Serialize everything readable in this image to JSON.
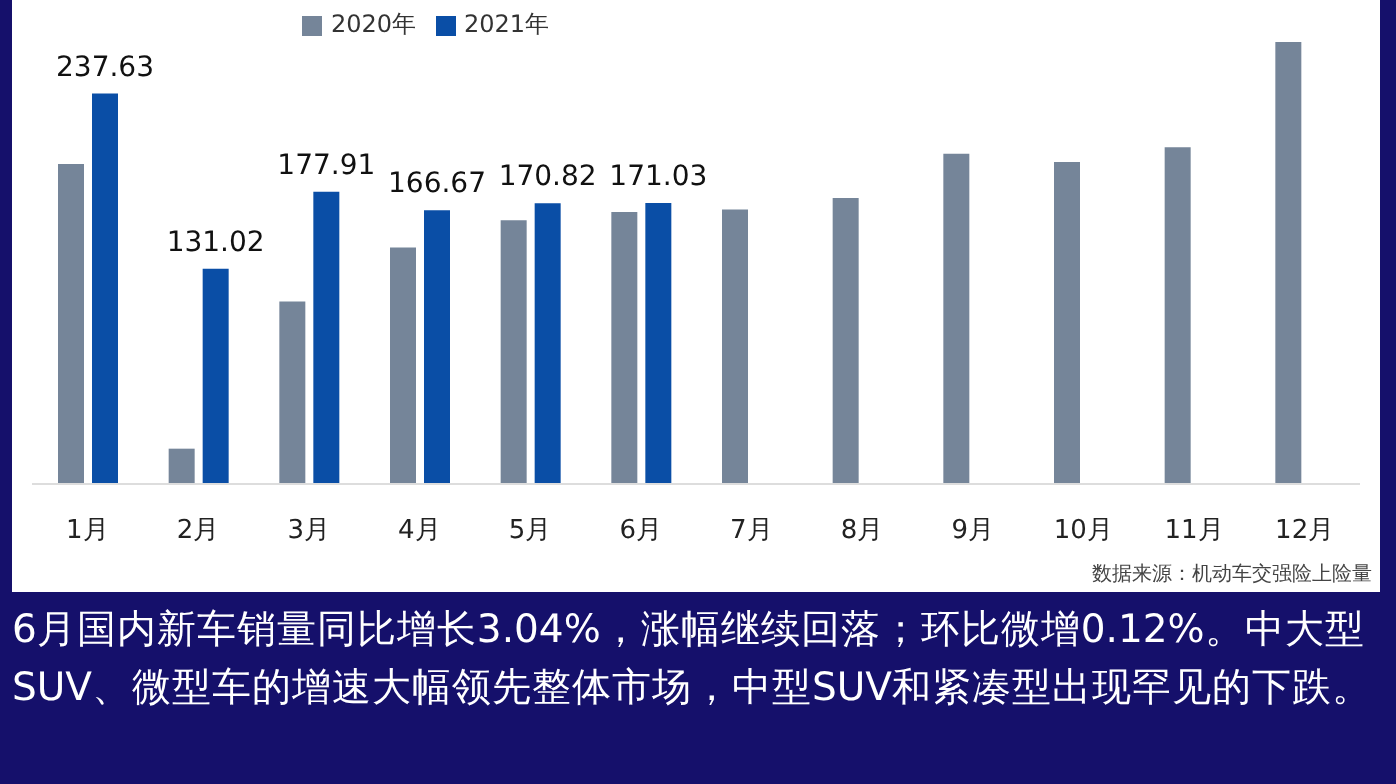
{
  "chart_data": {
    "type": "bar",
    "categories": [
      "1月",
      "2月",
      "3月",
      "4月",
      "5月",
      "6月",
      "7月",
      "8月",
      "9月",
      "10月",
      "11月",
      "12月"
    ],
    "series": [
      {
        "name": "2020年",
        "color": "#758599",
        "values": [
          194.7,
          21.5,
          111,
          144,
          160.5,
          165.6,
          167,
          174,
          201,
          196,
          205,
          269
        ]
      },
      {
        "name": "2021年",
        "color": "#0a4ea6",
        "values": [
          237.63,
          131.02,
          177.91,
          166.67,
          170.82,
          171.03,
          null,
          null,
          null,
          null,
          null,
          null
        ],
        "value_labels": [
          "237.63",
          "131.02",
          "177.91",
          "166.67",
          "170.82",
          "171.03",
          null,
          null,
          null,
          null,
          null,
          null
        ]
      }
    ],
    "tick_labels": "x",
    "legend": "top",
    "annotations": [
      "数据来源：机动车交强险上险量",
      "6月国内新车销量同比增长3.04%，涨幅继续回落；环比微增0.12%。中大型SUV、微型车的增速大幅领先整体市场，中型SUV和紧凑型出现罕见的下跌。"
    ]
  }
}
